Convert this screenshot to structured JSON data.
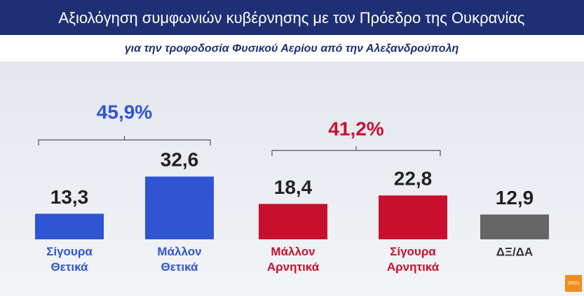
{
  "chart_data": {
    "type": "bar",
    "title": "Αξιολόγηση συμφωνιών κυβέρνησης με τον Πρόεδρο της Ουκρανίας",
    "subtitle": "για την τροφοδοσία Φυσικού Αερίου από την Αλεξανδρούπολη",
    "categories": [
      "Σίγουρα Θετικά",
      "Μάλλον Θετικά",
      "Μάλλον Αρνητικά",
      "Σίγουρα Αρνητικά",
      "ΔΞ/ΔΑ"
    ],
    "values": [
      13.3,
      32.6,
      18.4,
      22.8,
      12.9
    ],
    "value_labels": [
      "13,3",
      "32,6",
      "18,4",
      "22,8",
      "12,9"
    ],
    "colors": [
      "#2f55d4",
      "#2f55d4",
      "#c8102e",
      "#c8102e",
      "#666666"
    ],
    "annotations": [
      {
        "text": "45,9%",
        "color": "#2f55d4"
      },
      {
        "text": "41,2%",
        "color": "#c8102e"
      }
    ],
    "logo": "OPEN"
  }
}
